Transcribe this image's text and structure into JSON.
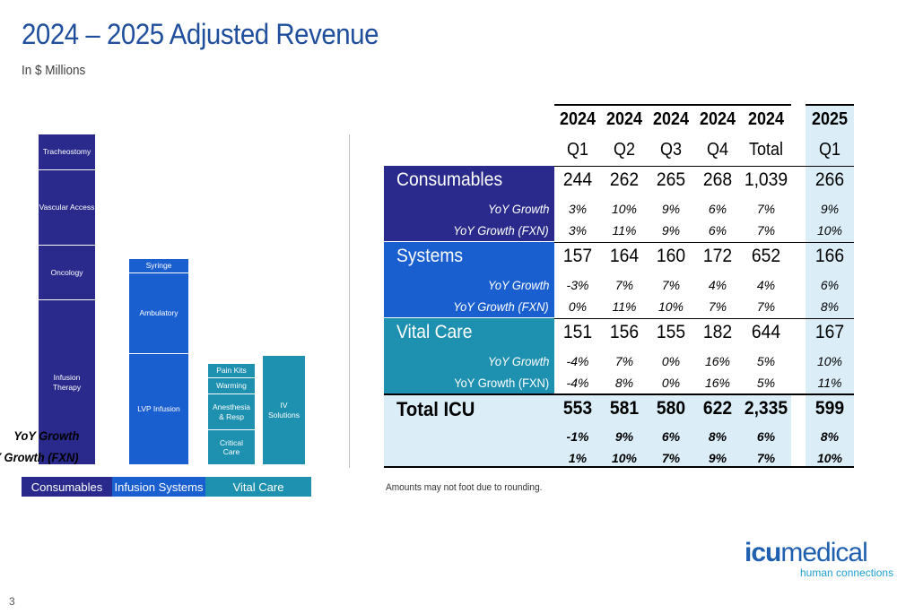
{
  "header": {
    "title": "2024 – 2025 Adjusted Revenue",
    "subtitle": "In $ Millions"
  },
  "portfolio": {
    "consumables": {
      "label": "Consumables",
      "segments": [
        "Tracheostomy",
        "Vascular Access",
        "Oncology",
        "Infusion Therapy"
      ]
    },
    "infusion_systems": {
      "label": "Infusion Systems",
      "segments": [
        "Syringe",
        "Ambulatory",
        "LVP Infusion"
      ]
    },
    "vital_care": {
      "label": "Vital Care",
      "segments_left": [
        "Pain Kits",
        "Warming",
        "Anesthesia & Resp",
        "Critical Care"
      ],
      "segment_right": "IV Solutions"
    }
  },
  "table": {
    "years": [
      "2024",
      "2024",
      "2024",
      "2024",
      "2024",
      "2025"
    ],
    "periods": [
      "Q1",
      "Q2",
      "Q3",
      "Q4",
      "Total",
      "Q1"
    ],
    "groups": [
      {
        "name": "Consumables",
        "values": [
          "244",
          "262",
          "265",
          "268",
          "1,039",
          "266"
        ],
        "yoy_label": "YoY Growth",
        "yoy": [
          "3%",
          "10%",
          "9%",
          "6%",
          "7%",
          "9%"
        ],
        "fxn_label": "YoY Growth (FXN)",
        "fxn": [
          "3%",
          "11%",
          "9%",
          "6%",
          "7%",
          "10%"
        ]
      },
      {
        "name": "Systems",
        "values": [
          "157",
          "164",
          "160",
          "172",
          "652",
          "166"
        ],
        "yoy_label": "YoY Growth",
        "yoy": [
          "-3%",
          "7%",
          "7%",
          "4%",
          "4%",
          "6%"
        ],
        "fxn_label": "YoY Growth (FXN)",
        "fxn": [
          "0%",
          "11%",
          "10%",
          "7%",
          "7%",
          "8%"
        ]
      },
      {
        "name": "Vital Care",
        "values": [
          "151",
          "156",
          "155",
          "182",
          "644",
          "167"
        ],
        "yoy_label": "YoY Growth",
        "yoy": [
          "-4%",
          "7%",
          "0%",
          "16%",
          "5%",
          "10%"
        ],
        "fxn_label": "YoY Growth (FXN)",
        "fxn": [
          "-4%",
          "8%",
          "0%",
          "16%",
          "5%",
          "11%"
        ]
      },
      {
        "name": "Total ICU",
        "values": [
          "553",
          "581",
          "580",
          "622",
          "2,335",
          "599"
        ],
        "yoy_label": "YoY Growth",
        "yoy": [
          "-1%",
          "9%",
          "6%",
          "8%",
          "6%",
          "8%"
        ],
        "fxn_label": "YoY Growth (FXN)",
        "fxn": [
          "1%",
          "10%",
          "7%",
          "9%",
          "7%",
          "10%"
        ]
      }
    ],
    "colors": {
      "consumables": "#2a2a8c",
      "systems": "#1a5fd0",
      "vital_care": "#1e90b0",
      "total_bg": "#dbeef8",
      "col2025_bg": "#dbeef8"
    }
  },
  "footnote": "Amounts may not foot due to rounding.",
  "page_number": "3",
  "logo": {
    "icu": "icu",
    "medical": "medical",
    "tagline": "human connections"
  }
}
